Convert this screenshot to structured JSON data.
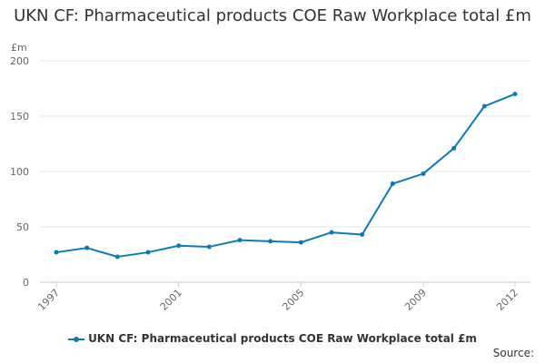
{
  "chart_data": {
    "type": "line",
    "title": "UKN CF: Pharmaceutical products COE Raw Workplace total £m",
    "ylabel": "£m",
    "xlabel": "",
    "x": [
      1997,
      1998,
      1999,
      2000,
      2001,
      2002,
      2003,
      2004,
      2005,
      2006,
      2007,
      2008,
      2009,
      2010,
      2011,
      2012
    ],
    "x_tick_labels": [
      "1997",
      "2001",
      "2005",
      "2009",
      "2012"
    ],
    "y_ticks": [
      0,
      50,
      100,
      150,
      200
    ],
    "ylim": [
      0,
      200
    ],
    "grid": true,
    "legend_position": "bottom",
    "series": [
      {
        "name": "UKN CF: Pharmaceutical products COE Raw Workplace total £m",
        "color": "#0b7bb8",
        "values": [
          27,
          31,
          23,
          27,
          33,
          32,
          38,
          37,
          36,
          45,
          43,
          89,
          98,
          121,
          159,
          170
        ]
      }
    ]
  },
  "footer": {
    "source_label": "Source:"
  }
}
